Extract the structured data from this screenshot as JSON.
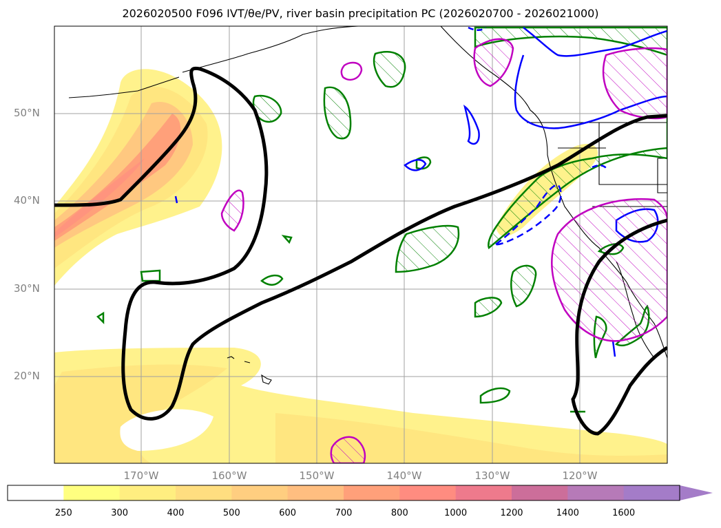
{
  "title": "2026020500 F096 IVT/θe/PV, river basin precipitation PC (2026020700 - 2026021000)",
  "lat_labels": [
    "50°N",
    "40°N",
    "30°N",
    "20°N"
  ],
  "lon_labels": [
    "170°W",
    "160°W",
    "150°W",
    "140°W",
    "130°W",
    "120°W"
  ],
  "colorbar": {
    "levels": [
      "250",
      "300",
      "400",
      "500",
      "600",
      "700",
      "800",
      "1000",
      "1200",
      "1400",
      "1600"
    ],
    "colors": [
      "#ffffff",
      "#ffff80",
      "#ffee80",
      "#ffde80",
      "#ffce80",
      "#ffbe80",
      "#ffa07a",
      "#ff8c80",
      "#ee7a8c",
      "#cc6e9a",
      "#b67ab8",
      "#a47cc8"
    ]
  },
  "colors": {
    "ivt_fill_light": "#fff28c",
    "ivt_fill_mid": "#ffd880",
    "ivt_fill_dark": "#ff9880",
    "theta_e_contour": "#000000",
    "pv_green": "#008000",
    "pv_blue": "#0000ff",
    "precip_magenta": "#c000c0"
  }
}
